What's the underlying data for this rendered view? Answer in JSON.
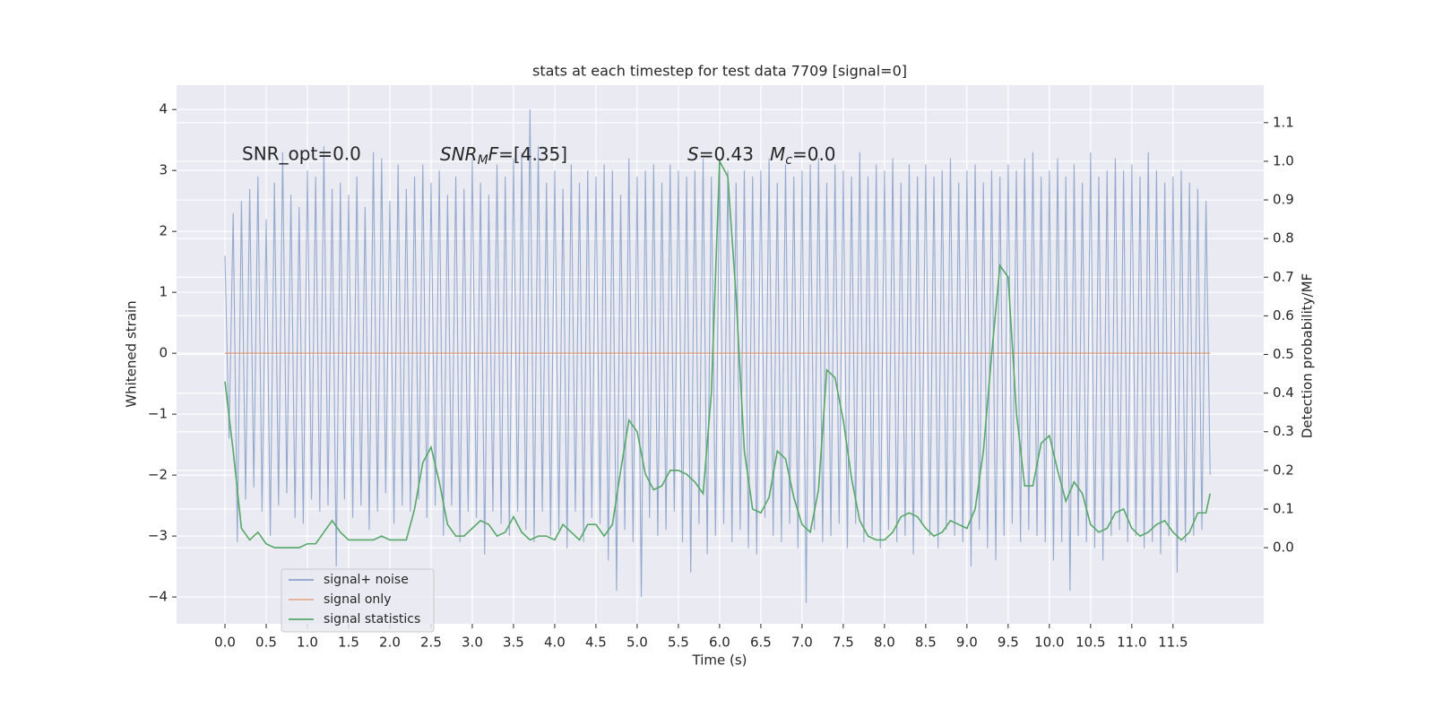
{
  "chart_data": {
    "type": "line",
    "title": "stats at each timestep for test data 7709 [signal=0]",
    "xlabel": "Time (s)",
    "ylabel": "Whitened strain",
    "y2label": "Detection probability/MF",
    "annotations": [
      "SNR_opt=0.0",
      [
        "SNR",
        "M",
        "F",
        "=[4.35]"
      ],
      [
        "S",
        "=0.43",
        "M",
        "c",
        "=0.0"
      ]
    ],
    "xlim": [
      -0.587,
      12.6
    ],
    "ylim": [
      -4.44,
      4.4
    ],
    "y2lim": [
      -0.197,
      1.197
    ],
    "xticks": [
      {
        "value": 0,
        "label": "0.0"
      },
      0.5,
      {
        "value": 1,
        "label": "1.0"
      },
      1.5,
      {
        "value": 2,
        "label": "2.0"
      },
      2.5,
      {
        "value": 3,
        "label": "3.0"
      },
      3.5,
      {
        "value": 4,
        "label": "4.0"
      },
      4.5,
      {
        "value": 5,
        "label": "5.0"
      },
      5.5,
      {
        "value": 6,
        "label": "6.0"
      },
      6.5,
      {
        "value": 7,
        "label": "7.0"
      },
      7.5,
      {
        "value": 8,
        "label": "8.0"
      },
      8.5,
      {
        "value": 9,
        "label": "9.0"
      },
      9.5,
      {
        "value": 10,
        "label": "10.0"
      },
      10.5,
      {
        "value": 11,
        "label": "11.0"
      },
      11.5
    ],
    "yticks": [
      {
        "value": -4,
        "label": "−4"
      },
      {
        "value": -3,
        "label": "−3"
      },
      {
        "value": -2,
        "label": "−2"
      },
      {
        "value": -1,
        "label": "−1"
      },
      0,
      1,
      2,
      3,
      4
    ],
    "y2ticks": [
      {
        "value": 0,
        "label": "0.0"
      },
      0.1,
      0.2,
      0.3,
      0.4,
      0.5,
      0.6,
      0.7,
      0.8,
      0.9,
      {
        "value": 1,
        "label": "1.0"
      },
      1.1
    ],
    "grid": true,
    "legend": "lower left",
    "background": "#eaeaf2",
    "series": [
      {
        "name": "signal+ noise",
        "color": "#4c72b0",
        "x": [
          0,
          0.05,
          0.1,
          0.15,
          0.2,
          0.25,
          0.3,
          0.35,
          0.4,
          0.45,
          0.5,
          0.55,
          0.6,
          0.65,
          0.7,
          0.75,
          0.8,
          0.85,
          0.9,
          0.95,
          1,
          1.05,
          1.1,
          1.15,
          1.2,
          1.25,
          1.3,
          1.35,
          1.4,
          1.45,
          1.5,
          1.55,
          1.6,
          1.65,
          1.7,
          1.75,
          1.8,
          1.85,
          1.9,
          1.95,
          2,
          2.05,
          2.1,
          2.15,
          2.2,
          2.25,
          2.3,
          2.35,
          2.4,
          2.45,
          2.5,
          2.55,
          2.6,
          2.65,
          2.7,
          2.75,
          2.8,
          2.85,
          2.9,
          2.95,
          3,
          3.05,
          3.1,
          3.15,
          3.2,
          3.25,
          3.3,
          3.35,
          3.4,
          3.45,
          3.5,
          3.55,
          3.6,
          3.65,
          3.7,
          3.75,
          3.8,
          3.85,
          3.9,
          3.95,
          4,
          4.05,
          4.1,
          4.15,
          4.2,
          4.25,
          4.3,
          4.35,
          4.4,
          4.45,
          4.5,
          4.55,
          4.6,
          4.65,
          4.7,
          4.75,
          4.8,
          4.85,
          4.9,
          4.95,
          5,
          5.05,
          5.1,
          5.15,
          5.2,
          5.25,
          5.3,
          5.35,
          5.4,
          5.45,
          5.5,
          5.55,
          5.6,
          5.65,
          5.7,
          5.75,
          5.8,
          5.85,
          5.9,
          5.95,
          6,
          6.05,
          6.1,
          6.15,
          6.2,
          6.25,
          6.3,
          6.35,
          6.4,
          6.45,
          6.5,
          6.55,
          6.6,
          6.65,
          6.7,
          6.75,
          6.8,
          6.85,
          6.9,
          6.95,
          7,
          7.05,
          7.1,
          7.15,
          7.2,
          7.25,
          7.3,
          7.35,
          7.4,
          7.45,
          7.5,
          7.55,
          7.6,
          7.65,
          7.7,
          7.75,
          7.8,
          7.85,
          7.9,
          7.95,
          8,
          8.05,
          8.1,
          8.15,
          8.2,
          8.25,
          8.3,
          8.35,
          8.4,
          8.45,
          8.5,
          8.55,
          8.6,
          8.65,
          8.7,
          8.75,
          8.8,
          8.85,
          8.9,
          8.95,
          9,
          9.05,
          9.1,
          9.15,
          9.2,
          9.25,
          9.3,
          9.35,
          9.4,
          9.45,
          9.5,
          9.55,
          9.6,
          9.65,
          9.7,
          9.75,
          9.8,
          9.85,
          9.9,
          9.95,
          10,
          10.05,
          10.1,
          10.15,
          10.2,
          10.25,
          10.3,
          10.35,
          10.4,
          10.45,
          10.5,
          10.55,
          10.6,
          10.65,
          10.7,
          10.75,
          10.8,
          10.85,
          10.9,
          10.95,
          11,
          11.05,
          11.1,
          11.15,
          11.2,
          11.25,
          11.3,
          11.35,
          11.4,
          11.45,
          11.5,
          11.55,
          11.6,
          11.65,
          11.7,
          11.75,
          11.8,
          11.85,
          11.9,
          11.95
        ],
        "values": [
          1.6,
          -1.4,
          2.3,
          -3.1,
          2.5,
          -2.4,
          2.7,
          -2.2,
          2.9,
          -2.6,
          2.2,
          -3.0,
          2.8,
          -2.5,
          3.3,
          -2.3,
          2.6,
          -2.7,
          2.4,
          -2.8,
          3.0,
          -2.4,
          2.9,
          -2.6,
          3.4,
          -2.5,
          2.7,
          -3.5,
          2.8,
          -2.4,
          2.6,
          -2.7,
          2.9,
          -2.5,
          2.4,
          -2.9,
          3.3,
          -2.6,
          3.2,
          -2.3,
          2.5,
          -2.8,
          3.1,
          -2.5,
          2.7,
          -2.6,
          2.9,
          -2.4,
          3.1,
          -2.7,
          2.8,
          -2.5,
          3.0,
          -3.0,
          2.6,
          -2.5,
          2.9,
          -3.1,
          2.7,
          -2.6,
          3.2,
          -2.7,
          2.8,
          -3.3,
          2.6,
          -2.6,
          3.1,
          -2.8,
          2.9,
          -3.0,
          3.2,
          -2.6,
          3.3,
          -2.9,
          4.0,
          -3.1,
          3.4,
          -2.6,
          2.8,
          -3.0,
          3.0,
          -2.9,
          2.7,
          -3.2,
          3.1,
          -2.6,
          2.8,
          -3.1,
          3.0,
          -2.7,
          2.9,
          -2.8,
          3.1,
          -3.4,
          3.0,
          -3.9,
          2.6,
          -2.9,
          3.2,
          -3.1,
          2.9,
          -4.0,
          3.0,
          -2.7,
          3.1,
          -3.0,
          2.8,
          -2.9,
          3.1,
          -2.6,
          3.0,
          -3.1,
          2.9,
          -3.6,
          3.0,
          -2.8,
          3.2,
          -3.3,
          2.9,
          -3.0,
          3.1,
          -2.8,
          3.0,
          -3.1,
          2.8,
          -2.9,
          3.0,
          -3.2,
          2.9,
          -3.3,
          3.0,
          -2.7,
          3.2,
          -3.0,
          2.8,
          -3.1,
          3.1,
          -2.8,
          2.9,
          -3.2,
          3.0,
          -4.1,
          3.1,
          -2.9,
          3.2,
          -3.1,
          2.8,
          -3.0,
          3.1,
          -2.8,
          3.0,
          -3.2,
          2.9,
          -2.8,
          3.3,
          -3.1,
          2.9,
          -3.0,
          3.1,
          -3.2,
          3.0,
          -2.9,
          3.2,
          -3.1,
          2.8,
          -3.0,
          3.1,
          -3.3,
          2.9,
          -2.8,
          3.1,
          -3.0,
          2.9,
          -3.2,
          3.0,
          -2.9,
          3.2,
          -3.0,
          2.8,
          -3.1,
          3.0,
          -3.5,
          3.1,
          -2.9,
          2.8,
          -3.2,
          3.0,
          -3.4,
          2.9,
          -3.0,
          3.1,
          -2.8,
          3.0,
          -3.1,
          3.2,
          -2.9,
          3.3,
          -3.0,
          2.9,
          -3.1,
          3.0,
          -3.4,
          3.2,
          -3.1,
          2.9,
          -3.9,
          3.1,
          -3.0,
          2.8,
          -3.1,
          3.3,
          -3.2,
          2.9,
          -3.4,
          3.0,
          -3.0,
          3.2,
          -2.9,
          3.0,
          -3.1,
          3.1,
          -3.0,
          2.9,
          -3.2,
          3.3,
          -3.1,
          3.0,
          -3.3,
          2.8,
          -3.0,
          2.9,
          -3.6,
          3.0,
          -3.1,
          2.8,
          -3.0,
          2.7,
          -2.9,
          2.5,
          -2.0
        ]
      },
      {
        "name": "signal only",
        "color": "#dd8452",
        "x": [
          0,
          11.95
        ],
        "values": [
          0,
          0
        ]
      },
      {
        "name": "signal statistics",
        "color": "#55a868",
        "axis": "y2",
        "x": [
          0,
          0.1,
          0.2,
          0.3,
          0.4,
          0.5,
          0.6,
          0.7,
          0.8,
          0.9,
          1,
          1.1,
          1.2,
          1.3,
          1.4,
          1.5,
          1.6,
          1.7,
          1.8,
          1.9,
          2,
          2.1,
          2.2,
          2.3,
          2.4,
          2.5,
          2.6,
          2.7,
          2.8,
          2.9,
          3,
          3.1,
          3.2,
          3.3,
          3.4,
          3.5,
          3.6,
          3.7,
          3.8,
          3.9,
          4,
          4.1,
          4.2,
          4.3,
          4.4,
          4.5,
          4.6,
          4.7,
          4.8,
          4.9,
          5,
          5.1,
          5.2,
          5.3,
          5.4,
          5.5,
          5.6,
          5.7,
          5.8,
          5.9,
          6,
          6.1,
          6.2,
          6.3,
          6.4,
          6.5,
          6.6,
          6.7,
          6.8,
          6.9,
          7,
          7.1,
          7.2,
          7.3,
          7.4,
          7.5,
          7.6,
          7.7,
          7.8,
          7.9,
          8,
          8.1,
          8.2,
          8.3,
          8.4,
          8.5,
          8.6,
          8.7,
          8.8,
          8.9,
          9,
          9.1,
          9.2,
          9.3,
          9.4,
          9.5,
          9.6,
          9.7,
          9.8,
          9.9,
          10,
          10.1,
          10.2,
          10.3,
          10.4,
          10.5,
          10.6,
          10.7,
          10.8,
          10.9,
          11,
          11.1,
          11.2,
          11.3,
          11.4,
          11.5,
          11.6,
          11.7,
          11.8,
          11.9,
          11.95
        ],
        "values": [
          0.43,
          0.25,
          0.05,
          0.02,
          0.04,
          0.01,
          0,
          0,
          0,
          0,
          0.01,
          0.01,
          0.04,
          0.07,
          0.04,
          0.02,
          0.02,
          0.02,
          0.02,
          0.03,
          0.02,
          0.02,
          0.02,
          0.1,
          0.22,
          0.26,
          0.17,
          0.06,
          0.03,
          0.03,
          0.05,
          0.07,
          0.06,
          0.03,
          0.04,
          0.08,
          0.04,
          0.02,
          0.03,
          0.03,
          0.02,
          0.06,
          0.04,
          0.02,
          0.06,
          0.06,
          0.03,
          0.06,
          0.2,
          0.33,
          0.3,
          0.19,
          0.15,
          0.16,
          0.2,
          0.2,
          0.19,
          0.17,
          0.14,
          0.4,
          1.0,
          0.96,
          0.65,
          0.25,
          0.1,
          0.09,
          0.13,
          0.25,
          0.23,
          0.13,
          0.06,
          0.04,
          0.15,
          0.46,
          0.44,
          0.33,
          0.18,
          0.07,
          0.03,
          0.02,
          0.02,
          0.04,
          0.08,
          0.09,
          0.08,
          0.05,
          0.03,
          0.04,
          0.07,
          0.06,
          0.05,
          0.1,
          0.25,
          0.5,
          0.73,
          0.7,
          0.35,
          0.16,
          0.16,
          0.27,
          0.29,
          0.2,
          0.12,
          0.17,
          0.14,
          0.06,
          0.04,
          0.05,
          0.09,
          0.1,
          0.05,
          0.03,
          0.04,
          0.06,
          0.07,
          0.04,
          0.02,
          0.04,
          0.09,
          0.09,
          0.14
        ]
      }
    ]
  }
}
